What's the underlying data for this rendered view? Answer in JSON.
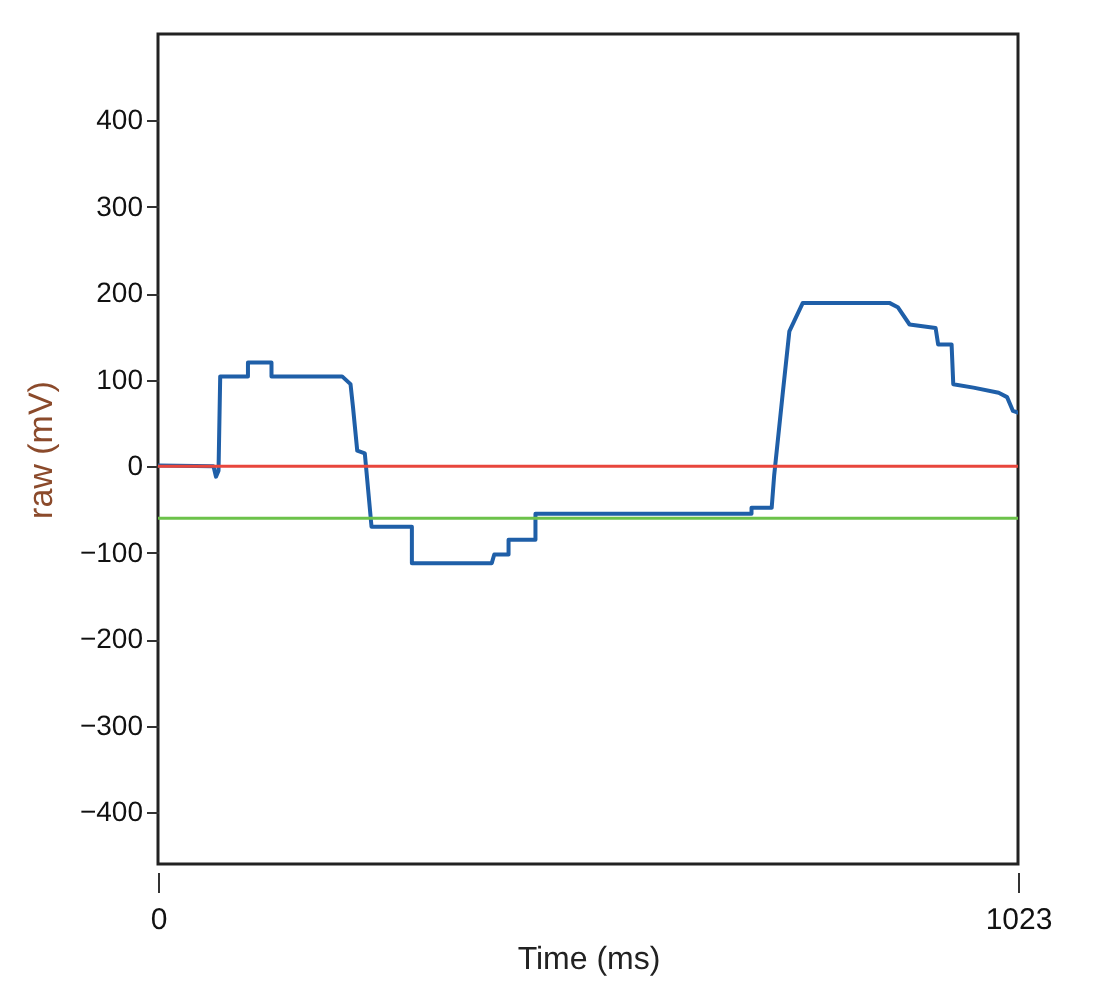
{
  "chart_data": {
    "type": "line",
    "xlabel": "Time (ms)",
    "ylabel": "raw (mV)",
    "xlim": [
      0,
      1023
    ],
    "xticks": [
      0,
      1023
    ],
    "ylim": [
      -460,
      500
    ],
    "yticks": [
      -400,
      -300,
      -200,
      -100,
      0,
      100,
      200,
      300,
      400
    ],
    "grid": false,
    "line_style": "solid",
    "series": [
      {
        "color": "#1f5fa8",
        "x": [
          0,
          66,
          69,
          72,
          74,
          107,
          107,
          135,
          135,
          219,
          229,
          232,
          237,
          246,
          254,
          302,
          302,
          397,
          400,
          417,
          417,
          449,
          449,
          706,
          706,
          730,
          733,
          743,
          751,
          767,
          870,
          880,
          894,
          925,
          928,
          944,
          946,
          970,
          1000,
          1010,
          1017,
          1023
        ],
        "values": [
          1,
          0,
          -12,
          -5,
          104,
          104,
          120,
          120,
          104,
          104,
          95,
          68,
          18,
          15,
          -70,
          -70,
          -112,
          -112,
          -102,
          -102,
          -85,
          -85,
          -55,
          -55,
          -48,
          -48,
          -10,
          83,
          156,
          189,
          189,
          184,
          164,
          160,
          141,
          141,
          95,
          91,
          85,
          80,
          64,
          62
        ]
      }
    ],
    "ref_lines": [
      {
        "axis": "y",
        "value": 0,
        "color": "#e8463c"
      },
      {
        "axis": "y",
        "value": -60,
        "color": "#6cc24a"
      }
    ]
  }
}
